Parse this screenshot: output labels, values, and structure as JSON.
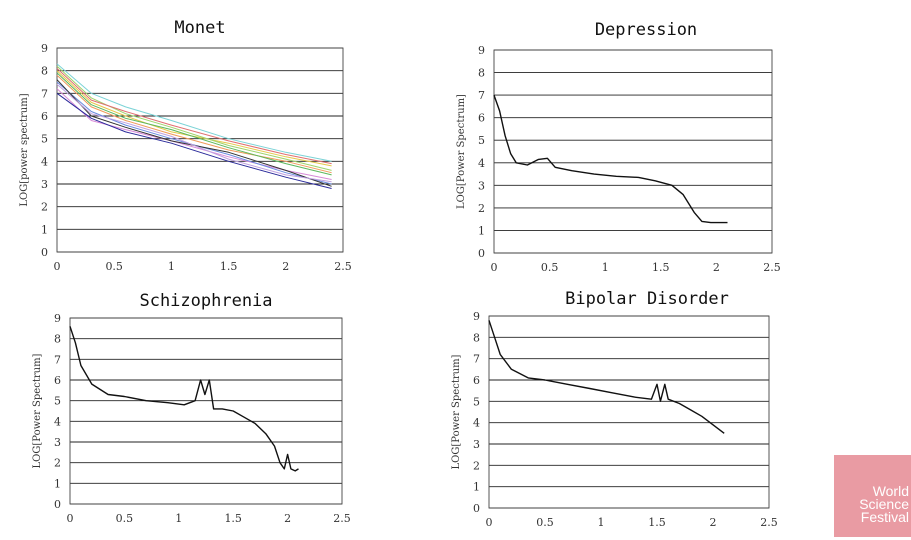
{
  "chart_data": [
    {
      "type": "line",
      "title": "Monet",
      "ylabel": "LOG[power spectrum]",
      "xlabel": "",
      "xlim": [
        0,
        2.5
      ],
      "ylim": [
        0,
        9
      ],
      "xticks": [
        "0",
        "0.5",
        "1",
        "1.5",
        "2",
        "2.5"
      ],
      "yticks": [
        "0",
        "1",
        "2",
        "3",
        "4",
        "5",
        "6",
        "7",
        "8",
        "9"
      ],
      "grid": "horizontal",
      "series": [
        {
          "color": "#7bd3d6",
          "points": [
            [
              0,
              8.3
            ],
            [
              0.3,
              7.0
            ],
            [
              0.6,
              6.4
            ],
            [
              1.0,
              5.8
            ],
            [
              1.5,
              5.0
            ],
            [
              2.0,
              4.4
            ],
            [
              2.4,
              4.0
            ]
          ]
        },
        {
          "color": "#e6c84a",
          "points": [
            [
              0,
              8.0
            ],
            [
              0.3,
              6.6
            ],
            [
              0.6,
              6.0
            ],
            [
              1.0,
              5.3
            ],
            [
              1.5,
              4.8
            ],
            [
              2.0,
              4.2
            ],
            [
              2.4,
              3.8
            ]
          ]
        },
        {
          "color": "#f09a5a",
          "points": [
            [
              0,
              7.8
            ],
            [
              0.3,
              6.4
            ],
            [
              0.6,
              5.8
            ],
            [
              1.0,
              5.2
            ],
            [
              1.5,
              4.5
            ],
            [
              2.0,
              4.0
            ],
            [
              2.4,
              3.5
            ]
          ]
        },
        {
          "color": "#9fd46a",
          "points": [
            [
              0,
              8.2
            ],
            [
              0.3,
              6.8
            ],
            [
              0.6,
              6.1
            ],
            [
              1.0,
              5.5
            ],
            [
              1.5,
              4.7
            ],
            [
              2.0,
              4.1
            ],
            [
              2.4,
              3.6
            ]
          ]
        },
        {
          "color": "#d88ad8",
          "points": [
            [
              0,
              7.2
            ],
            [
              0.3,
              5.8
            ],
            [
              0.6,
              5.4
            ],
            [
              1.0,
              4.9
            ],
            [
              1.5,
              4.2
            ],
            [
              2.0,
              3.6
            ],
            [
              2.4,
              3.2
            ]
          ]
        },
        {
          "color": "#6a8be0",
          "points": [
            [
              0,
              7.5
            ],
            [
              0.3,
              6.2
            ],
            [
              0.6,
              5.6
            ],
            [
              1.0,
              5.0
            ],
            [
              1.5,
              4.3
            ],
            [
              2.0,
              3.5
            ],
            [
              2.4,
              3.0
            ]
          ]
        },
        {
          "color": "#2a2a9a",
          "points": [
            [
              0,
              7.0
            ],
            [
              0.3,
              5.9
            ],
            [
              0.6,
              5.3
            ],
            [
              1.0,
              4.8
            ],
            [
              1.5,
              4.0
            ],
            [
              2.0,
              3.3
            ],
            [
              2.4,
              2.8
            ]
          ]
        },
        {
          "color": "#333333",
          "points": [
            [
              0,
              7.6
            ],
            [
              0.3,
              6.0
            ],
            [
              0.6,
              5.5
            ],
            [
              1.0,
              4.9
            ],
            [
              1.5,
              4.4
            ],
            [
              2.0,
              3.6
            ],
            [
              2.4,
              2.9
            ]
          ]
        },
        {
          "color": "#5cb85c",
          "points": [
            [
              0,
              7.9
            ],
            [
              0.3,
              6.5
            ],
            [
              0.6,
              5.9
            ],
            [
              1.0,
              5.4
            ],
            [
              1.5,
              4.6
            ],
            [
              2.0,
              3.9
            ],
            [
              2.4,
              3.4
            ]
          ]
        },
        {
          "color": "#c0a0e0",
          "points": [
            [
              0,
              7.4
            ],
            [
              0.3,
              6.1
            ],
            [
              0.6,
              5.7
            ],
            [
              1.0,
              5.1
            ],
            [
              1.5,
              4.1
            ],
            [
              2.0,
              3.4
            ],
            [
              2.4,
              3.1
            ]
          ]
        },
        {
          "color": "#e07070",
          "points": [
            [
              0,
              8.1
            ],
            [
              0.3,
              6.7
            ],
            [
              0.6,
              6.2
            ],
            [
              1.0,
              5.6
            ],
            [
              1.5,
              4.9
            ],
            [
              2.0,
              4.3
            ],
            [
              2.4,
              3.9
            ]
          ]
        }
      ]
    },
    {
      "type": "line",
      "title": "Depression",
      "ylabel": "LOG[Power Spectrum]",
      "xlabel": "",
      "xlim": [
        0,
        2.5
      ],
      "ylim": [
        0,
        9
      ],
      "xticks": [
        "0",
        "0.5",
        "1",
        "1.5",
        "2",
        "2.5"
      ],
      "yticks": [
        "0",
        "1",
        "2",
        "3",
        "4",
        "5",
        "6",
        "7",
        "8",
        "9"
      ],
      "grid": "horizontal",
      "series": [
        {
          "color": "#111111",
          "points": [
            [
              0,
              7.0
            ],
            [
              0.05,
              6.3
            ],
            [
              0.1,
              5.2
            ],
            [
              0.15,
              4.4
            ],
            [
              0.2,
              4.0
            ],
            [
              0.3,
              3.9
            ],
            [
              0.4,
              4.15
            ],
            [
              0.48,
              4.2
            ],
            [
              0.55,
              3.8
            ],
            [
              0.7,
              3.65
            ],
            [
              0.9,
              3.5
            ],
            [
              1.1,
              3.4
            ],
            [
              1.3,
              3.35
            ],
            [
              1.45,
              3.2
            ],
            [
              1.6,
              3.0
            ],
            [
              1.7,
              2.6
            ],
            [
              1.8,
              1.8
            ],
            [
              1.87,
              1.4
            ],
            [
              1.95,
              1.35
            ],
            [
              2.1,
              1.35
            ]
          ]
        }
      ]
    },
    {
      "type": "line",
      "title": "Schizophrenia",
      "ylabel": "LOG[Power Spectrum]",
      "xlabel": "",
      "xlim": [
        0,
        2.5
      ],
      "ylim": [
        0,
        9
      ],
      "xticks": [
        "0",
        "0.5",
        "1",
        "1.5",
        "2",
        "2.5"
      ],
      "yticks": [
        "0",
        "1",
        "2",
        "3",
        "4",
        "5",
        "6",
        "7",
        "8",
        "9"
      ],
      "grid": "horizontal",
      "series": [
        {
          "color": "#111111",
          "points": [
            [
              0,
              8.6
            ],
            [
              0.05,
              7.8
            ],
            [
              0.1,
              6.7
            ],
            [
              0.2,
              5.8
            ],
            [
              0.35,
              5.3
            ],
            [
              0.5,
              5.2
            ],
            [
              0.7,
              5.0
            ],
            [
              0.9,
              4.9
            ],
            [
              1.05,
              4.8
            ],
            [
              1.15,
              5.0
            ],
            [
              1.2,
              6.0
            ],
            [
              1.24,
              5.3
            ],
            [
              1.28,
              6.0
            ],
            [
              1.32,
              4.6
            ],
            [
              1.4,
              4.6
            ],
            [
              1.5,
              4.5
            ],
            [
              1.6,
              4.2
            ],
            [
              1.7,
              3.9
            ],
            [
              1.8,
              3.4
            ],
            [
              1.88,
              2.8
            ],
            [
              1.93,
              2.0
            ],
            [
              1.97,
              1.7
            ],
            [
              2.0,
              2.4
            ],
            [
              2.03,
              1.7
            ],
            [
              2.07,
              1.6
            ],
            [
              2.1,
              1.7
            ]
          ]
        }
      ]
    },
    {
      "type": "line",
      "title": "Bipolar Disorder",
      "ylabel": "LOG[Power Spectrum]",
      "xlabel": "",
      "xlim": [
        0,
        2.5
      ],
      "ylim": [
        0,
        9
      ],
      "xticks": [
        "0",
        "0.5",
        "1",
        "1.5",
        "2",
        "2.5"
      ],
      "yticks": [
        "0",
        "1",
        "2",
        "3",
        "4",
        "5",
        "6",
        "7",
        "8",
        "9"
      ],
      "grid": "horizontal",
      "series": [
        {
          "color": "#111111",
          "points": [
            [
              0,
              8.8
            ],
            [
              0.05,
              8.0
            ],
            [
              0.1,
              7.2
            ],
            [
              0.2,
              6.5
            ],
            [
              0.35,
              6.1
            ],
            [
              0.5,
              6.0
            ],
            [
              0.7,
              5.8
            ],
            [
              0.9,
              5.6
            ],
            [
              1.1,
              5.4
            ],
            [
              1.3,
              5.2
            ],
            [
              1.45,
              5.1
            ],
            [
              1.5,
              5.8
            ],
            [
              1.53,
              5.0
            ],
            [
              1.57,
              5.8
            ],
            [
              1.6,
              5.1
            ],
            [
              1.7,
              4.9
            ],
            [
              1.8,
              4.6
            ],
            [
              1.9,
              4.3
            ],
            [
              2.0,
              3.9
            ],
            [
              2.1,
              3.5
            ]
          ]
        }
      ]
    }
  ],
  "watermark": {
    "lines": [
      "World",
      "Science",
      "Festival"
    ],
    "color": "#e68a93"
  }
}
